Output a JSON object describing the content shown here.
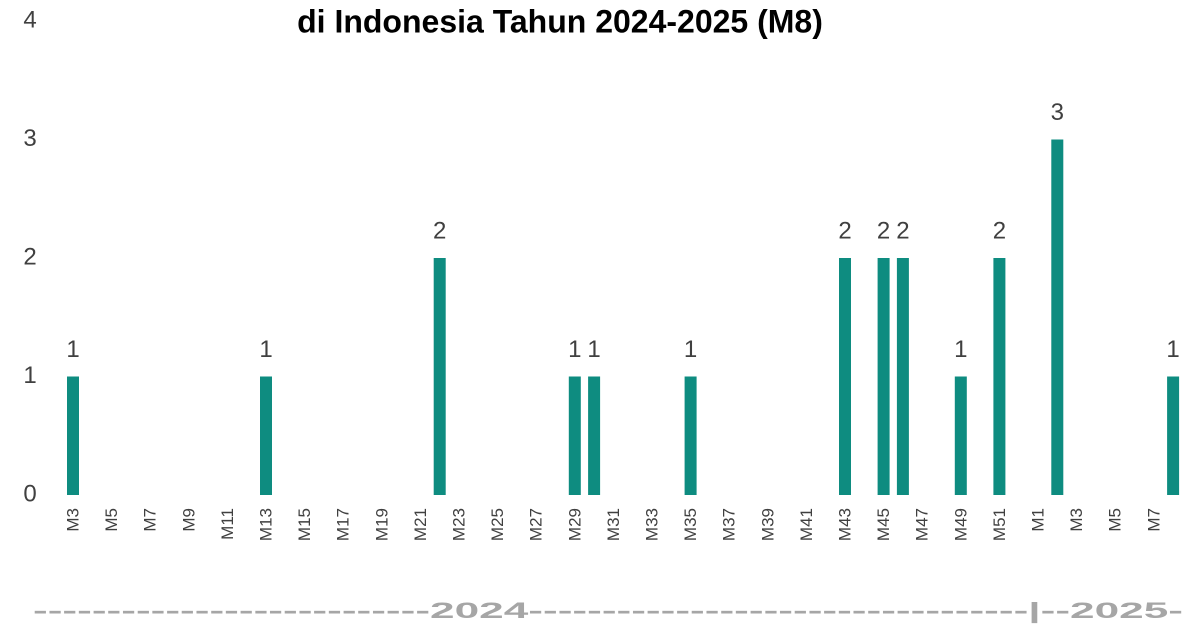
{
  "chart_data": {
    "type": "bar",
    "title": "di Indonesia Tahun 2024-2025 (M8)",
    "categories": [
      "M3",
      null,
      "M5",
      null,
      "M7",
      null,
      "M9",
      null,
      "M11",
      null,
      "M13",
      null,
      "M15",
      null,
      "M17",
      null,
      "M19",
      null,
      "M21",
      null,
      "M23",
      null,
      "M25",
      null,
      "M27",
      null,
      "M29",
      null,
      "M31",
      null,
      "M33",
      null,
      "M35",
      null,
      "M37",
      null,
      "M39",
      null,
      "M41",
      null,
      "M43",
      null,
      "M45",
      null,
      "M47",
      null,
      "M49",
      null,
      "M51",
      null,
      "M1",
      null,
      "M3",
      null,
      "M5",
      null,
      "M7",
      null
    ],
    "values": [
      1,
      0,
      0,
      0,
      0,
      0,
      0,
      0,
      0,
      0,
      1,
      0,
      0,
      0,
      0,
      0,
      0,
      0,
      0,
      2,
      0,
      0,
      0,
      0,
      0,
      0,
      1,
      1,
      0,
      0,
      0,
      0,
      1,
      0,
      0,
      0,
      0,
      0,
      0,
      0,
      2,
      0,
      2,
      2,
      0,
      0,
      1,
      0,
      2,
      0,
      0,
      3,
      0,
      0,
      0,
      0,
      0,
      1
    ],
    "color": "#0e8c80",
    "ylim": [
      0,
      4
    ],
    "yticks": [
      0,
      1,
      2,
      3,
      4
    ],
    "grid": false,
    "annotation": "---------------------------2024----------------------------------|--2025-"
  }
}
